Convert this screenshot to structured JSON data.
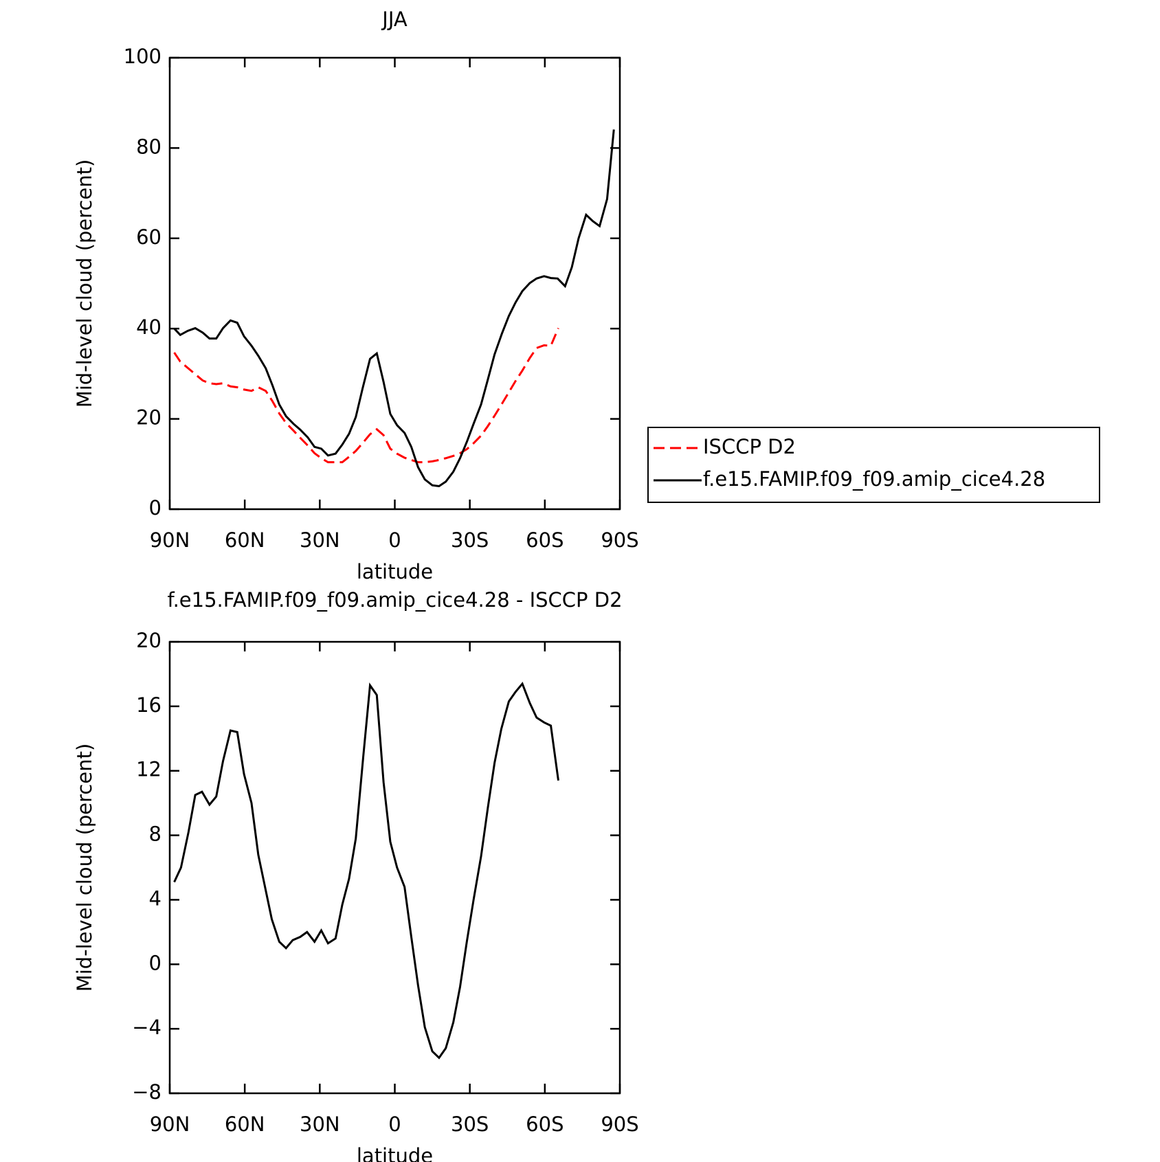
{
  "chart_data": [
    {
      "type": "line",
      "title": "JJA",
      "xlabel": "latitude",
      "ylabel": "Mid-level cloud (percent)",
      "xlim": [
        90,
        -90
      ],
      "xticks": [
        {
          "value": 90,
          "label": "90N"
        },
        {
          "value": 60,
          "label": "60N"
        },
        {
          "value": 30,
          "label": "30N"
        },
        0,
        {
          "value": -30,
          "label": "30S"
        },
        {
          "value": -60,
          "label": "60S"
        },
        {
          "value": -90,
          "label": "90S"
        }
      ],
      "ylim": [
        0,
        100
      ],
      "yticks": [
        0,
        20,
        40,
        60,
        80,
        100
      ],
      "legend": "right",
      "series": [
        {
          "name": "ISCCP D2",
          "color": "#ff0000",
          "linestyle": "dashed",
          "x": [
            88.2,
            85.8,
            82.8,
            79.8,
            76.8,
            74.1,
            71.4,
            68.7,
            65.7,
            63.0,
            60.3,
            57.3,
            54.6,
            51.6,
            48.9,
            46.2,
            43.5,
            40.5,
            37.8,
            34.8,
            32.1,
            29.4,
            26.7,
            23.7,
            21.0,
            18.3,
            15.6,
            12.9,
            9.9,
            7.2,
            4.5,
            1.8,
            -0.9,
            -3.9,
            -6.6,
            -9.3,
            -12.0,
            -15.0,
            -17.7,
            -20.4,
            -23.4,
            -26.1,
            -28.8,
            -31.5,
            -34.5,
            -37.2,
            -39.9,
            -42.9,
            -45.6,
            -48.3,
            -51.0,
            -54.0,
            -56.7,
            -59.7,
            -62.4,
            -65.4
          ],
          "values": [
            34.7,
            32.7,
            31.3,
            29.9,
            28.5,
            27.9,
            27.7,
            27.9,
            27.2,
            27.0,
            26.5,
            26.2,
            27.0,
            26.2,
            23.9,
            21.2,
            19.1,
            17.4,
            15.8,
            14.1,
            12.4,
            11.3,
            10.4,
            10.4,
            10.4,
            11.6,
            12.9,
            14.6,
            16.6,
            17.7,
            16.4,
            13.4,
            12.3,
            11.4,
            10.9,
            10.4,
            10.4,
            10.6,
            10.9,
            11.3,
            11.8,
            12.4,
            13.3,
            14.6,
            16.3,
            18.4,
            20.7,
            23.4,
            25.9,
            28.4,
            30.7,
            33.5,
            35.7,
            36.3,
            36.2,
            40.1
          ]
        },
        {
          "name": "f.e15.FAMIP.f09_f09.amip_cice4.28",
          "color": "#000000",
          "linestyle": "solid",
          "x": [
            88.2,
            85.8,
            82.8,
            79.8,
            76.8,
            74.1,
            71.4,
            68.7,
            65.7,
            63.0,
            60.3,
            57.3,
            54.6,
            51.6,
            48.9,
            46.2,
            43.5,
            40.5,
            37.8,
            34.8,
            32.1,
            29.4,
            26.7,
            23.7,
            21.0,
            18.3,
            15.6,
            12.9,
            9.9,
            7.2,
            4.5,
            1.8,
            -0.9,
            -3.9,
            -6.6,
            -9.3,
            -12.0,
            -15.0,
            -17.7,
            -20.4,
            -23.4,
            -26.1,
            -28.8,
            -31.5,
            -34.5,
            -37.2,
            -39.9,
            -42.9,
            -45.6,
            -48.3,
            -51.0,
            -54.0,
            -56.7,
            -59.7,
            -62.4,
            -65.1,
            -68.1,
            -70.8,
            -73.5,
            -76.5,
            -79.2,
            -81.9,
            -84.9,
            -87.6
          ],
          "values": [
            40.0,
            38.6,
            39.5,
            40.1,
            39.1,
            37.8,
            37.8,
            40.1,
            41.8,
            41.3,
            38.3,
            36.2,
            34.0,
            31.2,
            27.4,
            23.2,
            20.6,
            18.9,
            17.6,
            15.9,
            13.8,
            13.4,
            11.9,
            12.3,
            14.3,
            16.7,
            20.4,
            26.7,
            33.3,
            34.5,
            28.2,
            21.1,
            18.6,
            16.9,
            13.8,
            9.3,
            6.6,
            5.3,
            5.1,
            6.1,
            8.3,
            11.3,
            14.9,
            18.9,
            23.2,
            28.7,
            34.3,
            39.0,
            42.8,
            45.8,
            48.3,
            50.1,
            51.1,
            51.6,
            51.2,
            51.1,
            49.4,
            53.6,
            60.0,
            65.2,
            63.8,
            62.7,
            68.7,
            84.1
          ]
        }
      ]
    },
    {
      "type": "line",
      "title": "f.e15.FAMIP.f09_f09.amip_cice4.28 - ISCCP D2",
      "xlabel": "latitude",
      "ylabel": "Mid-level cloud (percent)",
      "xlim": [
        90,
        -90
      ],
      "xticks": [
        {
          "value": 90,
          "label": "90N"
        },
        {
          "value": 60,
          "label": "60N"
        },
        {
          "value": 30,
          "label": "30N"
        },
        0,
        {
          "value": -30,
          "label": "30S"
        },
        {
          "value": -60,
          "label": "60S"
        },
        {
          "value": -90,
          "label": "90S"
        }
      ],
      "ylim": [
        -8,
        20
      ],
      "yticks": [
        {
          "value": -8,
          "label": "−8"
        },
        {
          "value": -4,
          "label": "−4"
        },
        0,
        4,
        8,
        12,
        16,
        20
      ],
      "series": [
        {
          "color": "#000000",
          "linestyle": "solid",
          "x": [
            88.2,
            85.5,
            82.5,
            79.8,
            77.1,
            74.1,
            71.4,
            68.7,
            65.7,
            63.0,
            60.3,
            57.3,
            54.6,
            51.9,
            49.2,
            46.2,
            43.5,
            40.8,
            37.8,
            35.1,
            32.1,
            29.4,
            26.7,
            23.7,
            21.0,
            18.3,
            15.6,
            12.6,
            9.9,
            7.2,
            4.5,
            1.8,
            -0.9,
            -3.9,
            -6.6,
            -9.3,
            -12.0,
            -15.0,
            -17.7,
            -20.4,
            -23.4,
            -26.1,
            -28.8,
            -31.5,
            -34.5,
            -37.2,
            -39.9,
            -42.6,
            -45.6,
            -48.3,
            -51.0,
            -54.0,
            -56.7,
            -59.7,
            -62.4,
            -65.4
          ],
          "values": [
            5.1,
            6.0,
            8.2,
            10.5,
            10.7,
            9.9,
            10.4,
            12.6,
            14.5,
            14.4,
            11.8,
            10.0,
            6.8,
            4.8,
            2.8,
            1.4,
            1.0,
            1.5,
            1.7,
            2.0,
            1.4,
            2.1,
            1.3,
            1.6,
            3.7,
            5.3,
            7.8,
            12.9,
            17.3,
            16.7,
            11.3,
            7.6,
            6.0,
            4.8,
            1.7,
            -1.3,
            -3.9,
            -5.4,
            -5.8,
            -5.2,
            -3.6,
            -1.4,
            1.4,
            4.0,
            6.7,
            9.7,
            12.5,
            14.6,
            16.3,
            16.9,
            17.4,
            16.2,
            15.3,
            15.0,
            14.8,
            11.4
          ]
        }
      ]
    }
  ]
}
